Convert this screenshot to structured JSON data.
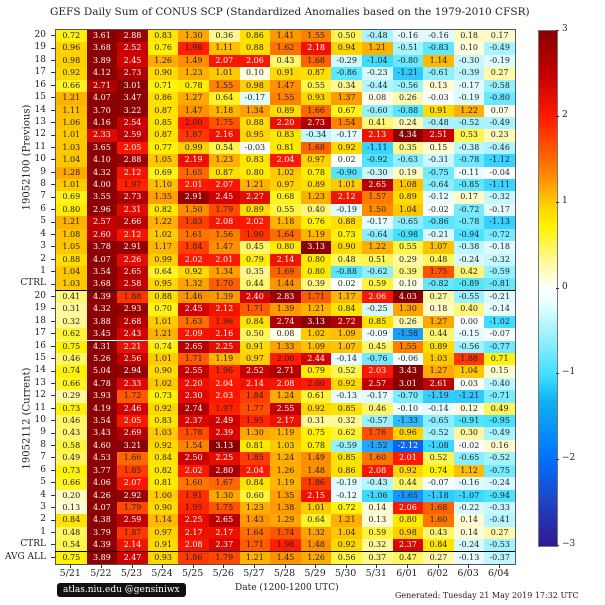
{
  "chart_data": {
    "type": "heatmap",
    "title": "GEFS Daily Sum of CONUS SCP (Standardized Anomalies based on the 1979-2010 CFSR)",
    "xlabel": "Date (1200-1200 UTC)",
    "columns": [
      "5/21",
      "5/22",
      "5/23",
      "5/24",
      "5/25",
      "5/26",
      "5/27",
      "5/28",
      "5/29",
      "5/30",
      "5/31",
      "6/01",
      "6/02",
      "6/03",
      "6/04"
    ],
    "groups": [
      {
        "label": "19052100 (Previous)",
        "rows": [
          {
            "member": "20",
            "values": [
              0.72,
              3.61,
              2.88,
              0.83,
              1.3,
              0.36,
              0.86,
              1.41,
              1.55,
              0.5,
              -0.48,
              -0.16,
              -0.16,
              0.18,
              0.17
            ]
          },
          {
            "member": "19",
            "values": [
              0.96,
              3.68,
              2.52,
              0.76,
              1.98,
              1.11,
              0.88,
              1.62,
              2.18,
              0.94,
              1.21,
              -0.51,
              -0.83,
              0.1,
              -0.49
            ]
          },
          {
            "member": "18",
            "values": [
              0.98,
              3.89,
              2.45,
              1.26,
              1.49,
              2.07,
              2.06,
              0.43,
              1.68,
              -0.29,
              -1.04,
              -0.8,
              1.14,
              -0.3,
              -0.19
            ]
          },
          {
            "member": "17",
            "values": [
              0.92,
              4.12,
              2.73,
              0.9,
              1.23,
              1.01,
              0.1,
              0.91,
              0.87,
              -0.86,
              -0.23,
              -1.21,
              -0.61,
              -0.39,
              0.27
            ]
          },
          {
            "member": "16",
            "values": [
              0.66,
              2.71,
              3.01,
              0.71,
              0.78,
              1.55,
              0.98,
              1.47,
              0.55,
              0.34,
              -0.44,
              -0.56,
              0.13,
              -0.17,
              -0.58
            ]
          },
          {
            "member": "15",
            "values": [
              1.21,
              4.07,
              3.47,
              0.86,
              1.27,
              0.64,
              -0.17,
              1.55,
              0.93,
              1.37,
              0.08,
              0.26,
              -0.03,
              -0.19,
              -0.8
            ]
          },
          {
            "member": "14",
            "values": [
              1.11,
              3.7,
              3.22,
              0.87,
              1.47,
              1.18,
              1.34,
              0.89,
              1.66,
              0.67,
              -0.6,
              -0.88,
              0.91,
              1.22,
              0.07
            ]
          },
          {
            "member": "13",
            "values": [
              1.06,
              4.16,
              2.54,
              0.85,
              2.0,
              1.75,
              0.88,
              2.2,
              2.73,
              1.54,
              0.41,
              0.24,
              -0.48,
              -0.52,
              -0.49
            ]
          },
          {
            "member": "12",
            "values": [
              1.01,
              2.33,
              2.59,
              0.87,
              1.87,
              2.16,
              0.95,
              0.83,
              -0.34,
              -0.17,
              2.13,
              4.34,
              2.51,
              0.53,
              0.23
            ]
          },
          {
            "member": "11",
            "values": [
              1.03,
              3.65,
              2.05,
              0.77,
              0.99,
              0.54,
              -0.03,
              0.81,
              1.68,
              0.92,
              -1.11,
              0.35,
              0.15,
              -0.38,
              -0.46
            ]
          },
          {
            "member": "10",
            "values": [
              1.04,
              4.1,
              2.88,
              1.05,
              2.19,
              1.23,
              0.83,
              2.04,
              0.97,
              0.02,
              -0.92,
              -0.63,
              -0.31,
              -0.78,
              -1.12
            ]
          },
          {
            "member": "9",
            "values": [
              1.28,
              4.32,
              2.12,
              0.69,
              1.65,
              0.87,
              0.8,
              1.02,
              0.78,
              -0.9,
              -0.3,
              0.19,
              -0.75,
              -0.11,
              -0.04
            ]
          },
          {
            "member": "8",
            "values": [
              1.01,
              4.0,
              1.97,
              1.1,
              2.01,
              2.07,
              1.21,
              0.97,
              0.89,
              1.01,
              2.65,
              1.08,
              -0.64,
              -0.85,
              -1.11
            ]
          },
          {
            "member": "7",
            "values": [
              0.69,
              3.55,
              2.73,
              1.35,
              2.91,
              2.45,
              2.27,
              0.68,
              1.23,
              2.12,
              1.57,
              0.89,
              -0.12,
              0.17,
              -0.32
            ]
          },
          {
            "member": "6",
            "values": [
              0.8,
              2.96,
              2.31,
              0.82,
              1.5,
              1.79,
              0.89,
              0.55,
              0.4,
              -0.19,
              1.5,
              1.04,
              -0.02,
              -0.72,
              -0.17
            ]
          },
          {
            "member": "5",
            "values": [
              1.21,
              2.57,
              2.66,
              1.22,
              1.83,
              2.08,
              2.02,
              1.18,
              0.76,
              0.88,
              -0.17,
              -0.65,
              -0.86,
              -0.78,
              -1.13
            ]
          },
          {
            "member": "4",
            "values": [
              1.08,
              2.6,
              2.12,
              1.02,
              1.61,
              1.56,
              1.9,
              1.64,
              1.19,
              0.73,
              -0.64,
              -0.98,
              -0.21,
              -0.94,
              -0.72
            ]
          },
          {
            "member": "3",
            "values": [
              1.05,
              3.78,
              2.91,
              1.17,
              1.84,
              1.47,
              0.45,
              0.8,
              3.13,
              0.9,
              1.22,
              0.55,
              1.07,
              -0.38,
              -0.18
            ]
          },
          {
            "member": "2",
            "values": [
              0.88,
              4.07,
              2.26,
              0.99,
              2.02,
              2.01,
              0.79,
              2.14,
              0.8,
              0.48,
              0.51,
              0.29,
              0.48,
              -0.24,
              -0.32
            ]
          },
          {
            "member": "1",
            "values": [
              1.04,
              3.54,
              2.65,
              0.64,
              0.92,
              1.34,
              0.35,
              1.69,
              0.8,
              -0.88,
              -0.62,
              0.39,
              1.75,
              0.42,
              -0.59
            ]
          },
          {
            "member": "CTRL",
            "values": [
              1.03,
              3.68,
              2.58,
              0.95,
              1.32,
              1.7,
              0.44,
              1.44,
              0.39,
              0.02,
              0.59,
              0.1,
              -0.82,
              -0.89,
              -0.81
            ]
          }
        ]
      },
      {
        "label": "19052112 (Current)",
        "rows": [
          {
            "member": "20",
            "values": [
              0.41,
              4.39,
              1.88,
              0.88,
              1.46,
              1.39,
              2.4,
              2.83,
              1.71,
              1.17,
              2.06,
              4.03,
              0.27,
              -0.55,
              -0.21
            ]
          },
          {
            "member": "19",
            "values": [
              0.31,
              4.32,
              2.93,
              0.7,
              2.45,
              2.12,
              1.71,
              1.39,
              1.21,
              0.84,
              -0.25,
              1.3,
              0.18,
              0.4,
              -0.14
            ]
          },
          {
            "member": "18",
            "values": [
              0.32,
              3.88,
              2.68,
              1.01,
              1.63,
              1.96,
              0.84,
              2.74,
              3.13,
              2.72,
              0.85,
              0.26,
              1.27,
              -0.0,
              -1.02
            ]
          },
          {
            "member": "17",
            "values": [
              0.62,
              3.45,
              2.43,
              1.21,
              2.09,
              2.16,
              0.5,
              0.08,
              1.02,
              1.09,
              -0.09,
              -1.58,
              0.44,
              -0.15,
              -0.07
            ]
          },
          {
            "member": "16",
            "values": [
              0.75,
              4.31,
              2.21,
              0.74,
              2.65,
              2.25,
              0.91,
              1.33,
              1.09,
              1.07,
              0.45,
              1.55,
              0.89,
              -0.56,
              -0.77
            ]
          },
          {
            "member": "15",
            "values": [
              0.46,
              5.26,
              2.56,
              1.01,
              1.71,
              1.19,
              0.97,
              2.0,
              2.44,
              -0.14,
              -0.76,
              -0.06,
              1.03,
              1.88,
              0.71
            ]
          },
          {
            "member": "14",
            "values": [
              0.74,
              5.04,
              2.94,
              0.9,
              2.55,
              1.96,
              2.52,
              2.71,
              0.79,
              0.52,
              2.03,
              3.43,
              1.27,
              1.04,
              0.15
            ]
          },
          {
            "member": "13",
            "values": [
              0.66,
              4.78,
              2.33,
              1.02,
              2.2,
              2.04,
              2.14,
              2.08,
              2.0,
              0.92,
              2.57,
              3.01,
              2.61,
              0.03,
              -0.4
            ]
          },
          {
            "member": "12",
            "values": [
              0.29,
              3.93,
              1.72,
              0.73,
              2.3,
              2.03,
              1.84,
              1.24,
              0.61,
              -0.13,
              -0.17,
              -0.7,
              -1.19,
              -1.21,
              -0.71
            ]
          },
          {
            "member": "11",
            "values": [
              0.73,
              4.19,
              2.46,
              0.92,
              2.74,
              1.97,
              1.77,
              2.55,
              0.92,
              0.85,
              0.46,
              -0.1,
              -0.14,
              0.12,
              0.49
            ]
          },
          {
            "member": "10",
            "values": [
              0.46,
              3.54,
              2.05,
              0.83,
              2.37,
              2.49,
              1.95,
              2.17,
              0.31,
              0.32,
              -0.57,
              -1.33,
              -0.65,
              -0.91,
              -0.95
            ]
          },
          {
            "member": "9",
            "values": [
              0.43,
              3.43,
              2.69,
              1.03,
              1.78,
              2.39,
              1.3,
              1.19,
              0.75,
              0.62,
              1.76,
              0.96,
              -0.52,
              0.3,
              -0.49
            ]
          },
          {
            "member": "8",
            "values": [
              0.58,
              4.6,
              3.21,
              0.92,
              1.54,
              3.13,
              0.81,
              1.03,
              0.78,
              -0.59,
              -1.52,
              -2.12,
              -1.08,
              -0.02,
              0.16
            ]
          },
          {
            "member": "7",
            "values": [
              0.49,
              4.53,
              1.66,
              0.84,
              2.5,
              2.25,
              1.85,
              1.24,
              1.49,
              0.85,
              1.6,
              2.01,
              0.52,
              -0.65,
              -0.52
            ]
          },
          {
            "member": "6",
            "values": [
              0.73,
              3.77,
              1.85,
              0.82,
              2.02,
              2.8,
              2.04,
              1.26,
              1.48,
              0.86,
              2.08,
              0.92,
              0.74,
              1.12,
              -0.75
            ]
          },
          {
            "member": "5",
            "values": [
              0.66,
              4.06,
              2.07,
              0.81,
              1.6,
              1.67,
              0.84,
              1.19,
              1.86,
              -0.19,
              -0.43,
              0.44,
              -0.07,
              -0.16,
              -0.24
            ]
          },
          {
            "member": "4",
            "values": [
              0.2,
              4.26,
              2.92,
              1.0,
              1.91,
              1.3,
              0.6,
              1.35,
              2.15,
              -0.12,
              -1.06,
              -1.65,
              -1.18,
              -1.07,
              -0.94
            ]
          },
          {
            "member": "3",
            "values": [
              0.13,
              4.07,
              1.79,
              0.9,
              1.95,
              1.75,
              1.23,
              1.38,
              1.01,
              0.72,
              0.14,
              2.06,
              1.68,
              -0.22,
              -0.33
            ]
          },
          {
            "member": "2",
            "values": [
              0.84,
              4.38,
              2.59,
              1.14,
              2.25,
              2.65,
              1.43,
              1.29,
              0.64,
              1.21,
              0.13,
              0.8,
              1.6,
              0.14,
              -0.41
            ]
          },
          {
            "member": "1",
            "values": [
              0.48,
              3.79,
              1.87,
              0.97,
              2.17,
              2.17,
              1.64,
              1.74,
              1.32,
              1.04,
              0.59,
              0.98,
              0.43,
              0.14,
              0.27
            ]
          },
          {
            "member": "CTRL",
            "values": [
              0.54,
              4.39,
              2.14,
              0.91,
              2.08,
              2.37,
              1.71,
              1.98,
              1.48,
              0.92,
              0.32,
              2.37,
              0.84,
              -0.24,
              -0.53
            ]
          }
        ]
      }
    ],
    "average": {
      "member": "AVG ALL",
      "values": [
        0.75,
        3.89,
        2.47,
        0.93,
        1.86,
        1.79,
        1.21,
        1.45,
        1.26,
        0.56,
        0.37,
        0.47,
        0.27,
        -0.13,
        -0.37
      ]
    },
    "colorbar": {
      "range": [
        -3,
        3
      ],
      "ticks": [
        "3",
        "2",
        "1",
        "0",
        "−1",
        "−2",
        "−3"
      ],
      "colormap": "blue-white-yellow-red"
    }
  },
  "footer": {
    "credit": "atlas.niu.edu  @gensiniwx",
    "generated": "Generated: Tuesday  21  May  2019  17:32 UTC"
  }
}
